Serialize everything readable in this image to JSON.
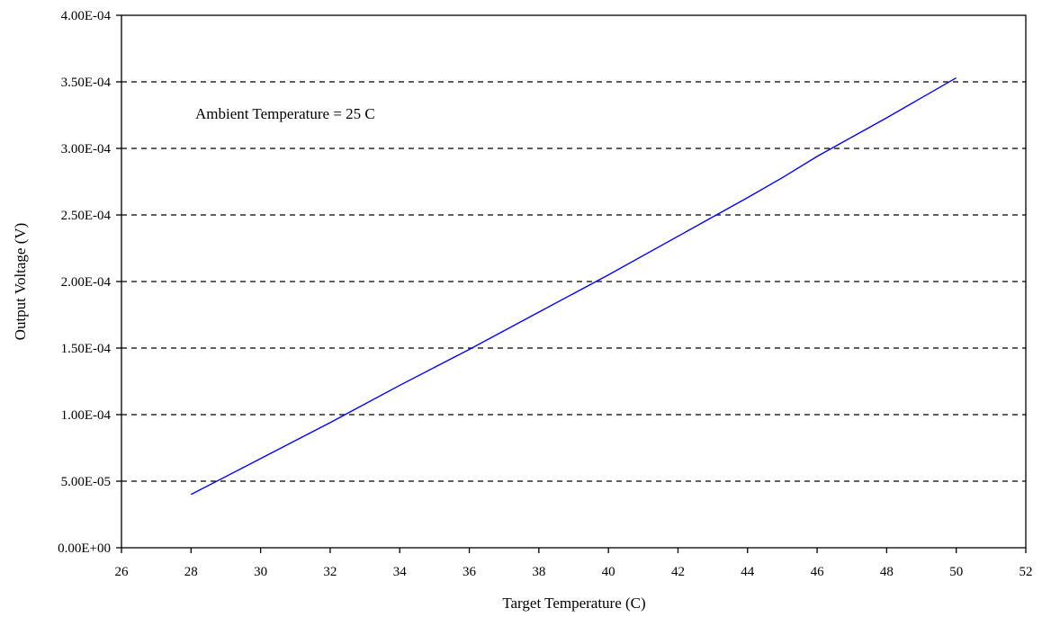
{
  "chart_data": {
    "type": "line",
    "title": "",
    "xlabel": "Target Temperature (C)",
    "ylabel": "Output Voltage (V)",
    "xlim": [
      26,
      52
    ],
    "ylim": [
      0,
      0.0004
    ],
    "x_ticks": [
      26,
      28,
      30,
      32,
      34,
      36,
      38,
      40,
      42,
      44,
      46,
      48,
      50,
      52
    ],
    "x_tick_labels": [
      "26",
      "28",
      "30",
      "32",
      "34",
      "36",
      "38",
      "40",
      "42",
      "44",
      "46",
      "48",
      "50",
      "52"
    ],
    "y_ticks": [
      0,
      5e-05,
      0.0001,
      0.00015,
      0.0002,
      0.00025,
      0.0003,
      0.00035,
      0.0004
    ],
    "y_tick_labels": [
      "0.00E+00",
      "5.00E-05",
      "1.00E-04",
      "1.50E-04",
      "2.00E-04",
      "2.50E-04",
      "3.00E-04",
      "3.50E-04",
      "4.00E-04"
    ],
    "grid": "horizontal-dashed",
    "annotation": "Ambient Temperature = 25 C",
    "series": [
      {
        "color": "#0000ff",
        "x": [
          28,
          30,
          32,
          34,
          36,
          38,
          40,
          42,
          44,
          45,
          46,
          48,
          50
        ],
        "y": [
          4e-05,
          6.7e-05,
          9.4e-05,
          0.000122,
          0.000149,
          0.000177,
          0.000205,
          0.000234,
          0.000263,
          0.000278,
          0.000294,
          0.000323,
          0.000353
        ]
      }
    ]
  }
}
